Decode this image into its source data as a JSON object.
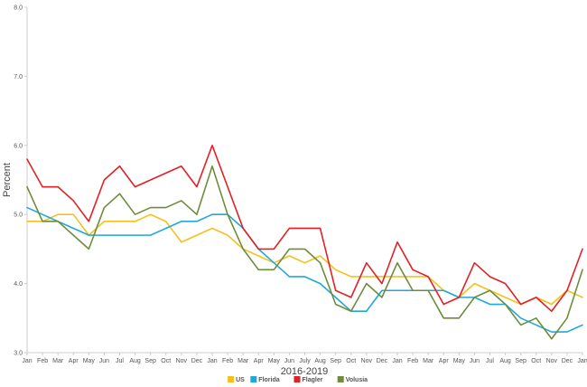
{
  "chart_data": {
    "type": "line",
    "title": "",
    "xlabel": "2016-2019",
    "ylabel": "Percent",
    "ylim": [
      3.0,
      8.0
    ],
    "yticks": [
      3.0,
      4.0,
      5.0,
      6.0,
      7.0,
      8.0
    ],
    "ytick_labels": [
      "3.0",
      "4.0",
      "5.0",
      "6.0",
      "7.0",
      "8.0"
    ],
    "grid": false,
    "legend_position": "bottom-center",
    "categories": [
      "Jan",
      "Feb",
      "Mar",
      "Apr",
      "May",
      "Jun",
      "Jul",
      "Aug",
      "Sep",
      "Oct",
      "Nov",
      "Dec",
      "Jan",
      "Feb",
      "Mar",
      "Apr",
      "May",
      "Jun",
      "July",
      "Aug",
      "Sep",
      "Oct",
      "Nov",
      "Dec",
      "Jan",
      "Feb",
      "Mar",
      "Apr",
      "May",
      "Jun",
      "Jul",
      "Aug",
      "Sep",
      "Oct",
      "Nov",
      "Dec",
      "Jan"
    ],
    "series": [
      {
        "name": "US",
        "color": "#f5c01e",
        "values": [
          4.9,
          4.9,
          5.0,
          5.0,
          4.7,
          4.9,
          4.9,
          4.9,
          5.0,
          4.9,
          4.6,
          4.7,
          4.8,
          4.7,
          4.5,
          4.4,
          4.3,
          4.4,
          4.3,
          4.4,
          4.2,
          4.1,
          4.1,
          4.1,
          4.1,
          4.1,
          4.1,
          3.9,
          3.8,
          4.0,
          3.9,
          3.8,
          3.7,
          3.8,
          3.7,
          3.9,
          3.8
        ]
      },
      {
        "name": "Florida",
        "color": "#1eaad8",
        "values": [
          5.1,
          5.0,
          4.9,
          4.8,
          4.7,
          4.7,
          4.7,
          4.7,
          4.7,
          4.8,
          4.9,
          4.9,
          5.0,
          5.0,
          4.8,
          4.5,
          4.3,
          4.1,
          4.1,
          4.0,
          3.8,
          3.6,
          3.6,
          3.9,
          3.9,
          3.9,
          3.9,
          3.9,
          3.8,
          3.8,
          3.7,
          3.7,
          3.5,
          3.4,
          3.3,
          3.3,
          3.4
        ]
      },
      {
        "name": "Flagler",
        "color": "#e02126",
        "values": [
          5.8,
          5.4,
          5.4,
          5.2,
          4.9,
          5.5,
          5.7,
          5.4,
          5.5,
          5.6,
          5.7,
          5.4,
          6.0,
          5.4,
          4.8,
          4.5,
          4.5,
          4.8,
          4.8,
          4.8,
          3.9,
          3.8,
          4.3,
          4.0,
          4.6,
          4.2,
          4.1,
          3.7,
          3.8,
          4.3,
          4.1,
          4.0,
          3.7,
          3.8,
          3.6,
          3.9,
          4.5
        ]
      },
      {
        "name": "Volusia",
        "color": "#6e8c3c",
        "values": [
          5.4,
          4.9,
          4.9,
          4.7,
          4.5,
          5.1,
          5.3,
          5.0,
          5.1,
          5.1,
          5.2,
          5.0,
          5.7,
          5.0,
          4.5,
          4.2,
          4.2,
          4.5,
          4.5,
          4.3,
          3.7,
          3.6,
          4.0,
          3.8,
          4.3,
          3.9,
          3.9,
          3.5,
          3.5,
          3.8,
          3.9,
          3.7,
          3.4,
          3.5,
          3.2,
          3.5,
          4.2
        ]
      }
    ]
  }
}
